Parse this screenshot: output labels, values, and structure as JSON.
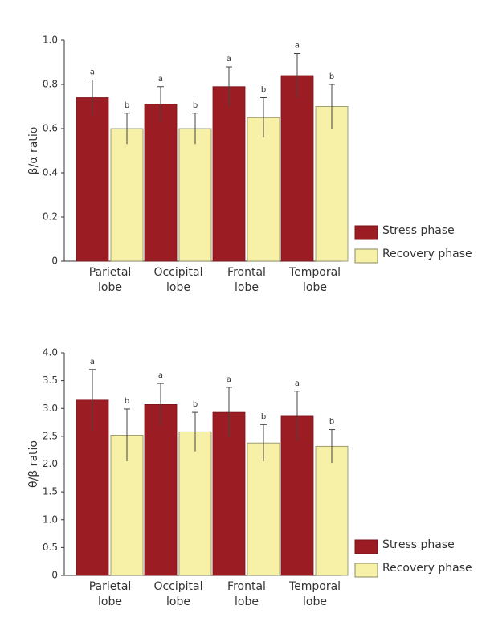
{
  "chart_data": [
    {
      "type": "bar",
      "y_label": "β/α ratio",
      "categories": [
        "Parietal lobe",
        "Occipital lobe",
        "Frontal lobe",
        "Temporal lobe"
      ],
      "series": [
        {
          "name": "Stress phase",
          "color": "#9b1c23",
          "values": [
            0.74,
            0.71,
            0.79,
            0.84
          ],
          "errors": [
            0.08,
            0.08,
            0.09,
            0.1
          ],
          "annotations": [
            "a",
            "a",
            "a",
            "a"
          ]
        },
        {
          "name": "Recovery phase",
          "color": "#f6f1a6",
          "values": [
            0.6,
            0.6,
            0.65,
            0.7
          ],
          "errors": [
            0.07,
            0.07,
            0.09,
            0.1
          ],
          "annotations": [
            "b",
            "b",
            "b",
            "b"
          ]
        }
      ],
      "ylim": [
        0,
        1
      ],
      "yticks": [
        0,
        0.2,
        0.4,
        0.6,
        0.8,
        {
          "value": 1,
          "label": "1.0"
        }
      ]
    },
    {
      "type": "bar",
      "y_label": "θ/β ratio",
      "categories": [
        "Parietal lobe",
        "Occipital lobe",
        "Frontal lobe",
        "Temporal lobe"
      ],
      "series": [
        {
          "name": "Stress phase",
          "color": "#9b1c23",
          "values": [
            3.15,
            3.07,
            2.93,
            2.86
          ],
          "errors": [
            0.55,
            0.38,
            0.45,
            0.45
          ],
          "annotations": [
            "a",
            "a",
            "a",
            "a"
          ]
        },
        {
          "name": "Recovery phase",
          "color": "#f6f1a6",
          "values": [
            2.52,
            2.58,
            2.38,
            2.32
          ],
          "errors": [
            0.47,
            0.35,
            0.33,
            0.3
          ],
          "annotations": [
            "b",
            "b",
            "b",
            "b"
          ]
        }
      ],
      "ylim": [
        0,
        4
      ],
      "yticks": [
        0,
        0.5,
        {
          "value": 1,
          "label": "1.0"
        },
        1.5,
        {
          "value": 2,
          "label": "2.0"
        },
        2.5,
        {
          "value": 3,
          "label": "3.0"
        },
        3.5,
        {
          "value": 4,
          "label": "4.0"
        }
      ]
    }
  ]
}
